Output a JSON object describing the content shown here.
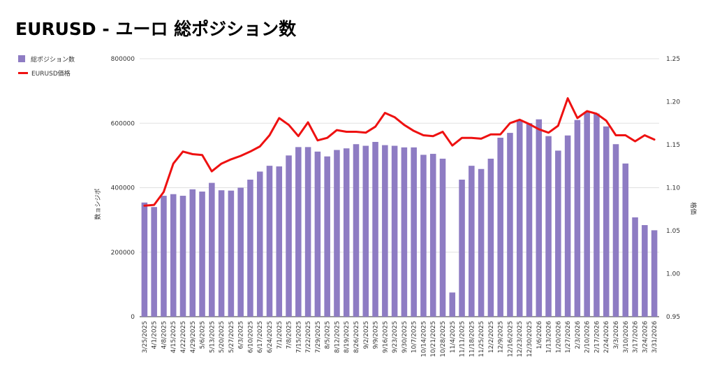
{
  "title": "EURUSD - ユーロ 総ポジション数",
  "legend": {
    "bar_label": "総ポジション数",
    "line_label": "EURUSD価格"
  },
  "colors": {
    "bars": "#8e7cc3",
    "line": "#ee1111",
    "grid": "#e0e0e0"
  },
  "chart_data": {
    "type": "bar",
    "title": "EURUSD - ユーロ 総ポジション数",
    "categories": [
      "3/25/2025",
      "4/1/2025",
      "4/8/2025",
      "4/15/2025",
      "4/22/2025",
      "4/29/2025",
      "5/6/2025",
      "5/13/2025",
      "5/20/2025",
      "5/27/2025",
      "6/3/2025",
      "6/10/2025",
      "6/17/2025",
      "6/24/2025",
      "7/1/2025",
      "7/8/2025",
      "7/15/2025",
      "7/22/2025",
      "7/29/2025",
      "8/5/2025",
      "8/12/2025",
      "8/19/2025",
      "8/26/2025",
      "9/2/2025",
      "9/9/2025",
      "9/16/2025",
      "9/23/2025",
      "9/30/2025",
      "10/7/2025",
      "10/14/2025",
      "10/21/2025",
      "10/28/2025",
      "11/4/2025",
      "11/11/2025",
      "11/18/2025",
      "11/25/2025",
      "12/2/2025",
      "12/9/2025",
      "12/16/2025",
      "12/23/2025",
      "12/30/2025",
      "1/6/2026",
      "1/13/2026",
      "1/20/2026",
      "1/27/2026",
      "2/3/2026",
      "2/10/2026",
      "2/17/2026",
      "2/24/2026",
      "3/3/2026",
      "3/10/2026",
      "3/17/2026",
      "3/24/2026",
      "3/31/2026"
    ],
    "series": [
      {
        "name": "総ポジション数",
        "type": "bar",
        "axis": "left",
        "values": [
          354000,
          340000,
          375000,
          380000,
          375000,
          395000,
          388000,
          415000,
          392000,
          391000,
          400000,
          425000,
          450000,
          468000,
          466000,
          500000,
          526000,
          526000,
          512000,
          497000,
          517000,
          522000,
          535000,
          530000,
          542000,
          532000,
          530000,
          525000,
          525000,
          502000,
          505000,
          490000,
          75000,
          425000,
          468000,
          458000,
          490000,
          555000,
          570000,
          610000,
          600000,
          612000,
          560000,
          515000,
          562000,
          610000,
          635000,
          630000,
          590000,
          535000,
          475000,
          308000,
          284000,
          268000
        ]
      },
      {
        "name": "EURUSD価格",
        "type": "line",
        "axis": "right",
        "values": [
          1.079,
          1.08,
          1.095,
          1.128,
          1.142,
          1.139,
          1.138,
          1.119,
          1.128,
          1.133,
          1.137,
          1.142,
          1.148,
          1.161,
          1.181,
          1.173,
          1.16,
          1.176,
          1.155,
          1.158,
          1.167,
          1.165,
          1.165,
          1.164,
          1.171,
          1.187,
          1.182,
          1.173,
          1.166,
          1.161,
          1.16,
          1.165,
          1.149,
          1.158,
          1.158,
          1.157,
          1.162,
          1.162,
          1.175,
          1.179,
          1.174,
          1.168,
          1.164,
          1.172,
          1.204,
          1.181,
          1.189,
          1.186,
          1.178,
          1.161,
          1.161,
          1.154,
          1.161,
          1.156
        ]
      }
    ],
    "ylabel": "数ョシジポ",
    "y2label": "格価",
    "ylim": [
      0,
      800000
    ],
    "y2lim": [
      0.95,
      1.25
    ],
    "yticks": [
      "0",
      "200000",
      "400000",
      "600000",
      "800000"
    ],
    "y2ticks": [
      "0.95",
      "1.00",
      "1.05",
      "1.10",
      "1.15",
      "1.20",
      "1.25"
    ],
    "grid": true,
    "legend_position": "top-left"
  }
}
